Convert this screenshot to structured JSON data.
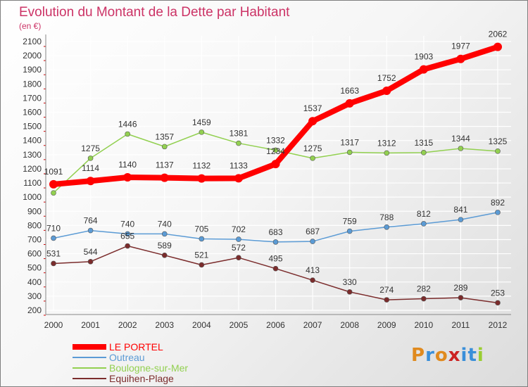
{
  "title": "Evolution du Montant de la Dette par Habitant",
  "subtitle": "(en €)",
  "logo": "Proxiti",
  "colors": {
    "title": "#cc3366",
    "grid": "#ffffff",
    "axis": "#888888",
    "tickMark": "#cc0000",
    "logo": [
      "#e08a1e",
      "#3a8fd9",
      "#e08a1e",
      "#cc2222",
      "#3a8fd9",
      "#3a8fd9",
      "#9acd32"
    ]
  },
  "chart_data": {
    "type": "line",
    "categories": [
      "2000",
      "2001",
      "2002",
      "2003",
      "2004",
      "2005",
      "2006",
      "2007",
      "2008",
      "2009",
      "2010",
      "2011",
      "2012"
    ],
    "ylim": [
      200,
      2100
    ],
    "yticks": [
      200,
      300,
      400,
      500,
      600,
      700,
      800,
      900,
      1000,
      1100,
      1200,
      1300,
      1400,
      1500,
      1600,
      1700,
      1800,
      1900,
      2000,
      2100
    ],
    "grid": true,
    "legend_position": "bottom-left",
    "series": [
      {
        "name": "LE PORTEL",
        "color": "#ff0000",
        "width": 8,
        "marker": 6,
        "values": [
          1091,
          1114,
          1140,
          1137,
          1132,
          1133,
          1234,
          1537,
          1663,
          1752,
          1903,
          1977,
          2062
        ],
        "labels": [
          "1091",
          "1114",
          "1140",
          "1137",
          "1132",
          "1133",
          "1234",
          "1537",
          "1663",
          "1752",
          "1903",
          "1977",
          "2062"
        ]
      },
      {
        "name": "Outreau",
        "color": "#5b9bd5",
        "width": 1.5,
        "marker": 3.5,
        "values": [
          710,
          764,
          740,
          740,
          705,
          702,
          683,
          687,
          759,
          788,
          812,
          841,
          892
        ],
        "labels": [
          "710",
          "764",
          "740",
          "740",
          "705",
          "702",
          "683",
          "687",
          "759",
          "788",
          "812",
          "841",
          "892"
        ]
      },
      {
        "name": "Boulogne-sur-Mer",
        "color": "#92d050",
        "width": 1.5,
        "marker": 3.5,
        "values": [
          1030,
          1275,
          1446,
          1357,
          1459,
          1381,
          1332,
          1275,
          1317,
          1312,
          1315,
          1344,
          1325
        ],
        "labels": [
          "",
          "1275",
          "1446",
          "1357",
          "1459",
          "1381",
          "1332",
          "1275",
          "1317",
          "1312",
          "1315",
          "1344",
          "1325"
        ]
      },
      {
        "name": "Equihen-Plage",
        "color": "#7b2c2c",
        "width": 1.5,
        "marker": 3.5,
        "values": [
          531,
          544,
          655,
          589,
          521,
          572,
          495,
          413,
          330,
          274,
          282,
          289,
          253
        ],
        "labels": [
          "531",
          "544",
          "655",
          "589",
          "521",
          "572",
          "495",
          "413",
          "330",
          "274",
          "282",
          "289",
          "253"
        ]
      }
    ]
  }
}
